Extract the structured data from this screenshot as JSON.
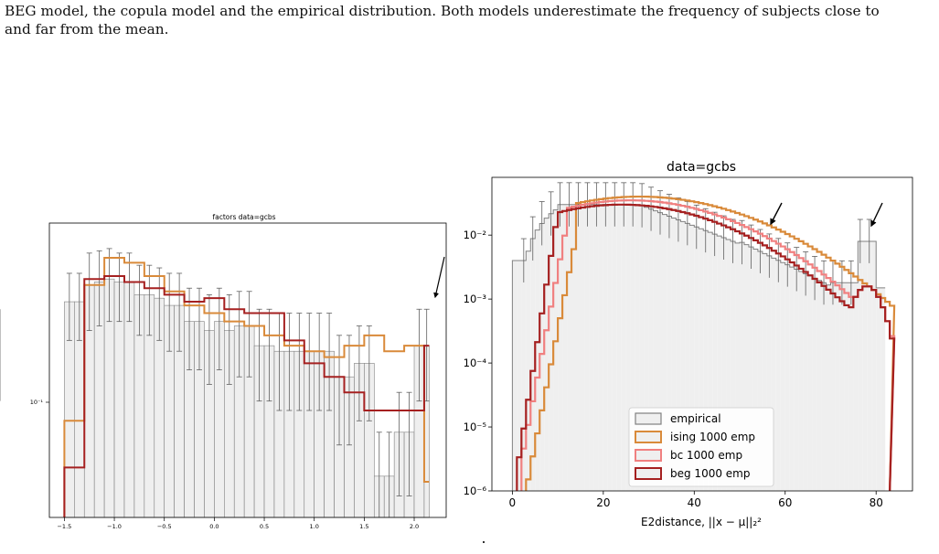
{
  "caption": {
    "lines": [
      "BEG model, the copula model and the empirical distribution. Both models underestimate the frequency of subjects close to",
      "and far from the mean."
    ]
  },
  "colors": {
    "empirical_edge": "#808080",
    "empirical_fill": "#efefef",
    "ising": "#d98a3a",
    "bc": "#f08080",
    "beg": "#a52020",
    "errorbar": "#606060"
  },
  "chart_data": [
    {
      "type": "bar",
      "title": "factors data=gcbs",
      "xlabel": "",
      "ylabel": "",
      "yscale": "log",
      "xlim": [
        -1.65,
        2.32
      ],
      "ylim": [
        0.041,
        0.62
      ],
      "xticks": [
        -1.5,
        -1.0,
        -0.5,
        0.0,
        0.5,
        1.0,
        1.5,
        2.0
      ],
      "xtick_labels": [
        "−1.5",
        "−1.0",
        "−0.5",
        "0.0",
        "0.5",
        "1.0",
        "1.5",
        "2.0"
      ],
      "ytick_labels": [
        "10⁻¹"
      ],
      "grid": false,
      "legend": "none",
      "annotation": "arrow, top-right",
      "bin_edges": [
        -1.5,
        -1.4,
        -1.3,
        -1.2,
        -1.1,
        -1.0,
        -0.9,
        -0.8,
        -0.7,
        -0.6,
        -0.5,
        -0.4,
        -0.3,
        -0.2,
        -0.1,
        0.0,
        0.1,
        0.2,
        0.3,
        0.4,
        0.5,
        0.6,
        0.7,
        0.8,
        0.9,
        1.0,
        1.1,
        1.2,
        1.3,
        1.4,
        1.5,
        1.6,
        1.7,
        1.8,
        1.9,
        2.0,
        2.1,
        2.15
      ],
      "series": [
        {
          "name": "empirical",
          "values": [
            0.3,
            0.3,
            0.35,
            0.36,
            0.37,
            0.36,
            0.36,
            0.32,
            0.32,
            0.31,
            0.29,
            0.29,
            0.25,
            0.25,
            0.23,
            0.25,
            0.23,
            0.24,
            0.24,
            0.2,
            0.2,
            0.19,
            0.19,
            0.19,
            0.19,
            0.19,
            0.19,
            0.15,
            0.15,
            0.17,
            0.17,
            0.06,
            0.06,
            0.09,
            0.09,
            0.2,
            0.2,
            0.2
          ],
          "err": [
            0.09,
            0.09,
            0.12,
            0.12,
            0.12,
            0.11,
            0.11,
            0.1,
            0.1,
            0.1,
            0.1,
            0.1,
            0.09,
            0.09,
            0.09,
            0.09,
            0.09,
            0.09,
            0.09,
            0.08,
            0.08,
            0.08,
            0.08,
            0.08,
            0.08,
            0.08,
            0.08,
            0.07,
            0.07,
            0.07,
            0.07,
            0.03,
            0.03,
            0.04,
            0.04,
            0.08,
            0.08,
            0.08
          ]
        },
        {
          "name": "ising",
          "values": [
            0.1,
            0.1,
            0.35,
            0.35,
            0.45,
            0.45,
            0.43,
            0.43,
            0.38,
            0.38,
            0.33,
            0.33,
            0.29,
            0.29,
            0.27,
            0.27,
            0.25,
            0.25,
            0.24,
            0.24,
            0.22,
            0.22,
            0.2,
            0.2,
            0.19,
            0.19,
            0.18,
            0.18,
            0.2,
            0.2,
            0.22,
            0.22,
            0.19,
            0.19,
            0.2,
            0.2,
            0.057,
            0.057
          ]
        },
        {
          "name": "beg",
          "values": [
            0.065,
            0.065,
            0.37,
            0.37,
            0.38,
            0.38,
            0.36,
            0.36,
            0.34,
            0.34,
            0.32,
            0.32,
            0.3,
            0.3,
            0.31,
            0.31,
            0.28,
            0.28,
            0.27,
            0.27,
            0.27,
            0.27,
            0.21,
            0.21,
            0.17,
            0.17,
            0.15,
            0.15,
            0.13,
            0.13,
            0.11,
            0.11,
            0.11,
            0.11,
            0.11,
            0.11,
            0.2,
            0.2
          ]
        }
      ]
    },
    {
      "type": "bar",
      "title": "data=gcbs",
      "xlabel": "E2distance, ||x − μ||₂²",
      "ylabel": "",
      "yscale": "log",
      "xlim": [
        -4.5,
        88
      ],
      "ylim": [
        1e-06,
        0.08
      ],
      "xticks": [
        0,
        20,
        40,
        60,
        80
      ],
      "xtick_labels": [
        "0",
        "20",
        "40",
        "60",
        "80"
      ],
      "yticks": [
        1e-06,
        1e-05,
        0.0001,
        0.001,
        0.01
      ],
      "ytick_labels": [
        "10⁻⁶",
        "10⁻⁵",
        "10⁻⁴",
        "10⁻³",
        "10⁻²"
      ],
      "grid": false,
      "legend": "bottom-center",
      "annotation": "two arrows, near x≈58 and x≈80",
      "series": [
        {
          "name": "empirical"
        },
        {
          "name": "ising 1000  emp"
        },
        {
          "name": "bc 1000  emp"
        },
        {
          "name": "beg 1000  emp"
        }
      ]
    }
  ]
}
